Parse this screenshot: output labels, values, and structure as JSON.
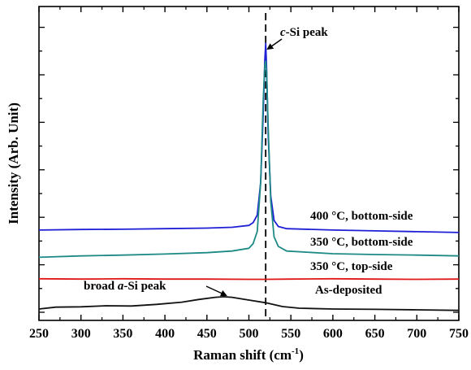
{
  "chart_data": {
    "type": "line",
    "xlabel": "Raman shift (cm",
    "xlabel_sup": "-1",
    "xlabel_end": ")",
    "ylabel": "Intensity (Arb. Unit)",
    "xlim": [
      250,
      750
    ],
    "ylim": [
      0,
      100
    ],
    "x_ticks": [
      250,
      300,
      350,
      400,
      450,
      500,
      550,
      600,
      650,
      700,
      750
    ],
    "y_tick_labels_shown": false,
    "grid": false,
    "reference_line": {
      "x": 520,
      "style": "dashed",
      "color": "#000000"
    },
    "annotations": [
      {
        "name": "c-si-peak",
        "italic": "c",
        "rest": "-Si peak",
        "target_x": 520
      },
      {
        "name": "a-si-peak",
        "prefix": "broad ",
        "italic": "a",
        "rest": "-Si peak",
        "target_x": 470
      }
    ],
    "series": [
      {
        "name": "400 °C, bottom-side",
        "color": "#1f1fd6",
        "x": [
          250,
          300,
          350,
          400,
          450,
          480,
          500,
          505,
          510,
          514,
          517,
          519,
          520,
          521,
          523,
          526,
          530,
          535,
          545,
          600,
          650,
          700,
          750
        ],
        "y": [
          27.5,
          27.7,
          27.8,
          28.0,
          28.2,
          28.5,
          29.2,
          30.2,
          33,
          45,
          70,
          90,
          96,
          88,
          62,
          40,
          31,
          28.8,
          28,
          27.5,
          27.2,
          26.9,
          26.6
        ]
      },
      {
        "name": "350 °C, bottom-side",
        "color": "#1e8a86",
        "x": [
          250,
          300,
          350,
          400,
          450,
          480,
          500,
          505,
          510,
          514,
          517,
          519,
          520,
          521,
          523,
          526,
          530,
          535,
          545,
          600,
          650,
          700,
          750
        ],
        "y": [
          17.5,
          18.0,
          18.3,
          18.7,
          19.2,
          19.8,
          20.8,
          22.5,
          27,
          45,
          75,
          88,
          89.5,
          86,
          65,
          38,
          25,
          21.5,
          19.8,
          18.8,
          18.5,
          18.3,
          18.0
        ]
      },
      {
        "name": "350 °C, top-side",
        "color": "#e01818",
        "x": [
          250,
          300,
          350,
          400,
          450,
          500,
          520,
          550,
          600,
          650,
          700,
          750
        ],
        "y": [
          9.6,
          9.5,
          9.6,
          9.5,
          9.5,
          9.4,
          9.4,
          9.5,
          9.6,
          9.5,
          9.4,
          9.5
        ]
      },
      {
        "name": "As-deposited",
        "color": "#111111",
        "x": [
          250,
          270,
          300,
          330,
          360,
          390,
          420,
          440,
          460,
          470,
          480,
          500,
          520,
          540,
          560,
          600,
          650,
          700,
          750
        ],
        "y": [
          -1.5,
          -0.8,
          -0.7,
          -0.3,
          -0.4,
          0.2,
          1.0,
          2.0,
          2.8,
          3.0,
          2.8,
          1.8,
          0.8,
          -0.6,
          -1.2,
          -1.5,
          -1.6,
          -1.8,
          -2.0
        ]
      }
    ]
  }
}
